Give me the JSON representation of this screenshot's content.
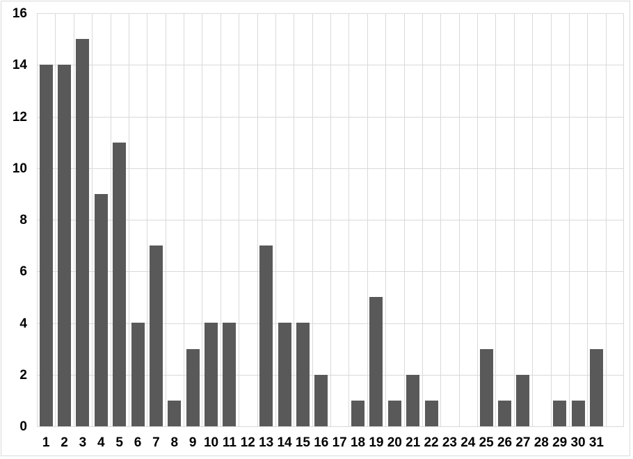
{
  "chart_data": {
    "type": "bar",
    "title": "",
    "xlabel": "",
    "ylabel": "",
    "categories": [
      "1",
      "2",
      "3",
      "4",
      "5",
      "6",
      "7",
      "8",
      "9",
      "10",
      "11",
      "12",
      "13",
      "14",
      "15",
      "16",
      "17",
      "18",
      "19",
      "20",
      "21",
      "22",
      "23",
      "24",
      "25",
      "26",
      "27",
      "28",
      "29",
      "30",
      "31"
    ],
    "values": [
      14,
      14,
      15,
      9,
      11,
      4,
      7,
      1,
      3,
      4,
      4,
      0,
      7,
      4,
      4,
      2,
      0,
      1,
      5,
      1,
      2,
      1,
      0,
      0,
      3,
      1,
      2,
      0,
      1,
      1,
      3
    ],
    "ylim": [
      0,
      16
    ],
    "yticks": [
      0,
      2,
      4,
      6,
      8,
      10,
      12,
      14,
      16
    ],
    "ytick_labels": [
      "0",
      "2",
      "4",
      "6",
      "8",
      "10",
      "12",
      "14",
      "16"
    ],
    "grid": true,
    "vertical_gridlines": true,
    "legend": false,
    "trailing_empty_slots": 1,
    "colors": {
      "bar": "#595959",
      "gridline": "#d9d9d9",
      "axis_line": "#d9d9d9",
      "label_text": "#000000",
      "background": "#ffffff",
      "frame_border": "#d9d9d9"
    }
  }
}
